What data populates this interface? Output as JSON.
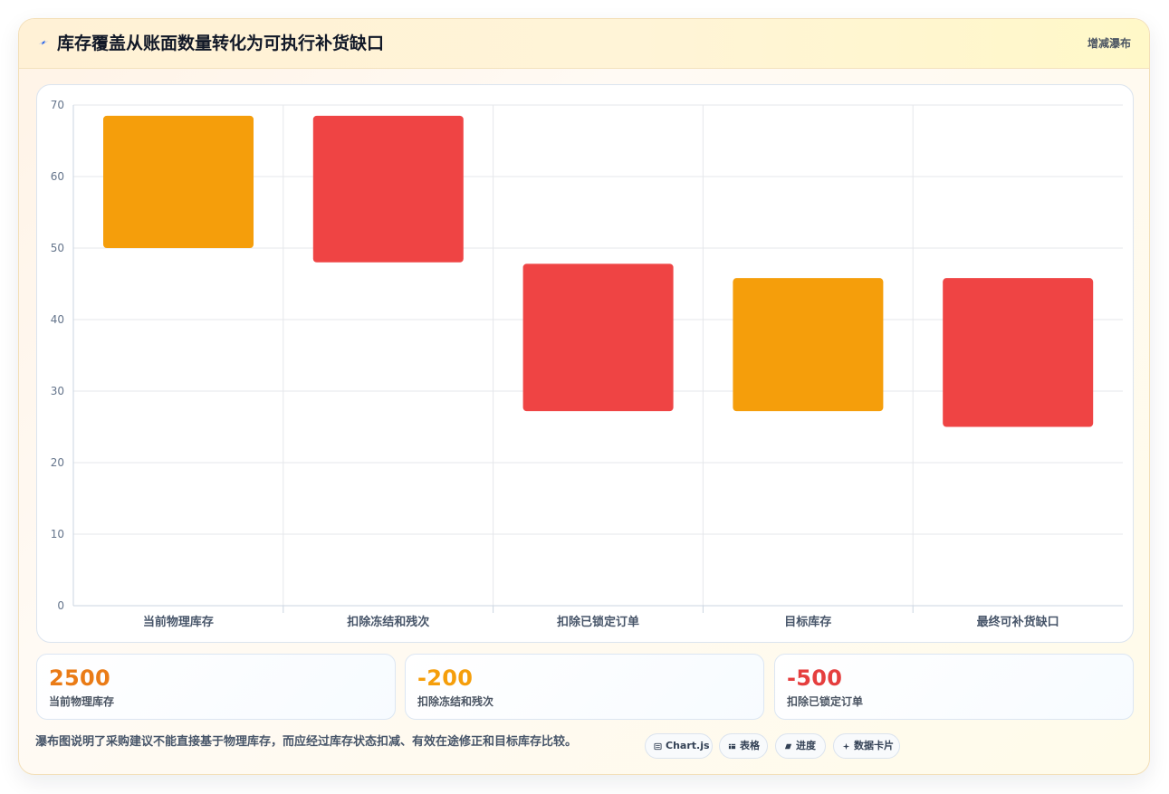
{
  "header": {
    "title": "库存覆盖从账面数量转化为可执行补货缺口",
    "badge": "增减瀑布",
    "icon": "lightning-icon"
  },
  "chart_data": {
    "type": "bar",
    "categories": [
      "当前物理库存",
      "扣除冻结和残次",
      "扣除已锁定订单",
      "目标库存",
      "最终可补货缺口"
    ],
    "bars": [
      {
        "start": 50,
        "end": 68.5,
        "color": "#f59e0b"
      },
      {
        "start": 48,
        "end": 68.5,
        "color": "#ef4444"
      },
      {
        "start": 27.2,
        "end": 47.8,
        "color": "#ef4444"
      },
      {
        "start": 27.2,
        "end": 45.8,
        "color": "#f59e0b"
      },
      {
        "start": 25,
        "end": 45.8,
        "color": "#ef4444"
      }
    ],
    "yticks": [
      0,
      10,
      20,
      30,
      40,
      50,
      60,
      70
    ],
    "ylim": [
      0,
      70
    ],
    "title": "",
    "xlabel": "",
    "ylabel": "",
    "grid": true
  },
  "stats": [
    {
      "value": "2500",
      "label": "当前物理库存",
      "color": "#ea7b16"
    },
    {
      "value": "-200",
      "label": "扣除冻结和残次",
      "color": "#f59e0b"
    },
    {
      "value": "-500",
      "label": "扣除已锁定订单",
      "color": "#e53e3e"
    }
  ],
  "footer": {
    "note": "瀑布图说明了采购建议不能直接基于物理库存，而应经过库存状态扣减、有效在途修正和目标库存比较。"
  },
  "chips": [
    {
      "label": "Chart.js",
      "icon": "chart-icon"
    },
    {
      "label": "表格",
      "icon": "table-icon"
    },
    {
      "label": "进度",
      "icon": "progress-icon"
    },
    {
      "label": "数据卡片",
      "icon": "sparkle-icon"
    }
  ]
}
